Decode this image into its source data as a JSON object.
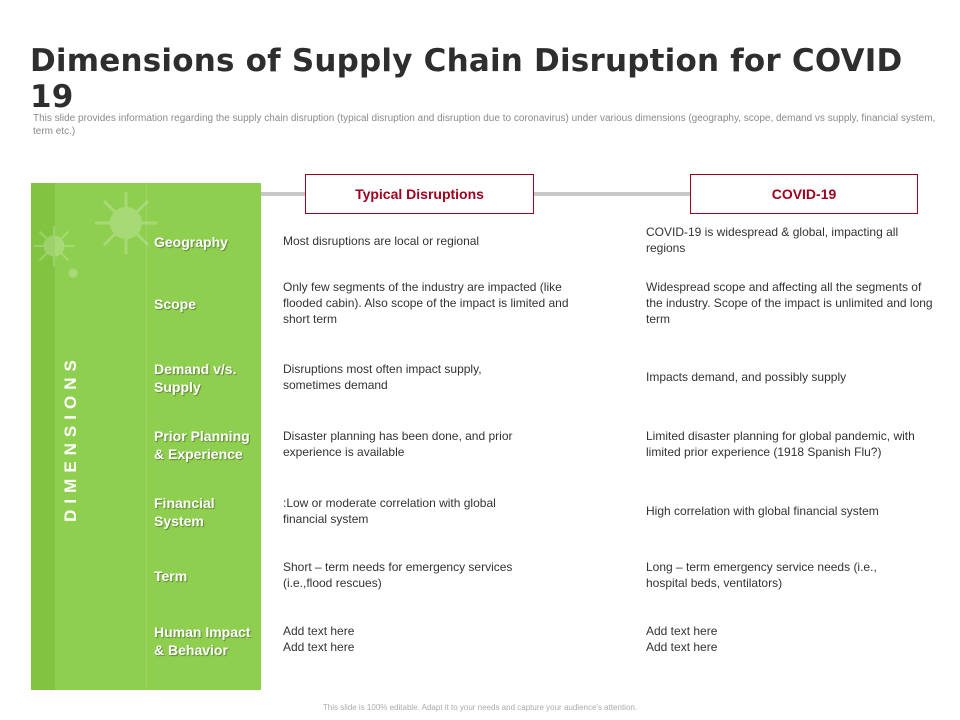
{
  "title": "Dimensions of Supply Chain Disruption for COVID 19",
  "subtitle": "This slide provides information regarding the supply chain disruption (typical disruption and disruption due to coronavirus) under various dimensions (geography, scope, demand vs supply, financial system, term etc.)",
  "side_label": "DIMENSIONS",
  "columns": {
    "typical": "Typical Disruptions",
    "covid": "COVID-19"
  },
  "rows": [
    {
      "dimension": "Geography",
      "typical": "Most disruptions are local or regional",
      "covid": "COVID-19 is widespread & global, impacting all regions"
    },
    {
      "dimension": "Scope",
      "typical": "Only few segments of the industry are impacted (like flooded cabin). Also scope of the impact is limited and short term",
      "covid": "Widespread scope and affecting all the segments of the industry. Scope of the impact is unlimited and long term"
    },
    {
      "dimension": "Demand v/s. Supply",
      "typical": "Disruptions most often impact supply, sometimes demand",
      "covid": "Impacts demand, and possibly supply"
    },
    {
      "dimension": "Prior Planning & Experience",
      "typical": "Disaster planning has been done, and prior experience is available",
      "covid": "Limited disaster planning for global pandemic, with limited prior experience (1918 Spanish Flu?)"
    },
    {
      "dimension": "Financial System",
      "typical": ":Low or moderate correlation with global financial system",
      "covid": "High correlation with global financial system"
    },
    {
      "dimension": "Term",
      "typical": "Short – term needs for emergency services (i.e.,flood rescues)",
      "covid": "Long – term emergency service needs (i.e., hospital beds, ventilators)"
    },
    {
      "dimension": "Human Impact & Behavior",
      "typical": "Add text here\nAdd text here",
      "covid": "Add text here\nAdd text here"
    }
  ],
  "footer": "This slide is 100% editable. Adapt it to your needs and capture your audience's attention."
}
